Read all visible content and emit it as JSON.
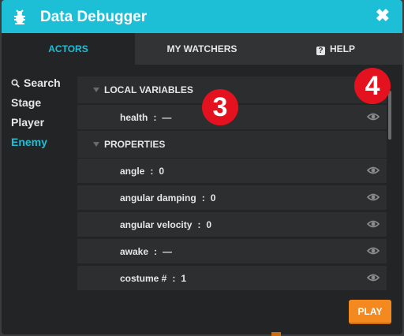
{
  "colors": {
    "accent": "#1dbfd7",
    "play": "#f4891f",
    "badge": "#e4121e"
  },
  "window": {
    "title": "Data Debugger",
    "close_glyph": "✖"
  },
  "tabs": [
    {
      "label": "ACTORS"
    },
    {
      "label": "MY WATCHERS"
    },
    {
      "label": "HELP",
      "icon_glyph": "?"
    }
  ],
  "sidebar": {
    "items": [
      {
        "label": "Search",
        "icon": "search-icon"
      },
      {
        "label": "Stage"
      },
      {
        "label": "Player"
      },
      {
        "label": "Enemy"
      }
    ]
  },
  "sections": {
    "local_variables": "LOCAL VARIABLES",
    "properties": "PROPERTIES"
  },
  "local_vars": [
    {
      "name": "health",
      "sep": ":",
      "value": "—"
    }
  ],
  "properties": [
    {
      "name": "angle",
      "sep": ":",
      "value": "0"
    },
    {
      "name": "angular damping",
      "sep": ":",
      "value": "0"
    },
    {
      "name": "angular velocity",
      "sep": ":",
      "value": "0"
    },
    {
      "name": "awake",
      "sep": ":",
      "value": "—"
    },
    {
      "name": "costume #",
      "sep": ":",
      "value": "1"
    }
  ],
  "badges": [
    "3",
    "4"
  ],
  "play_label": "PLAY"
}
